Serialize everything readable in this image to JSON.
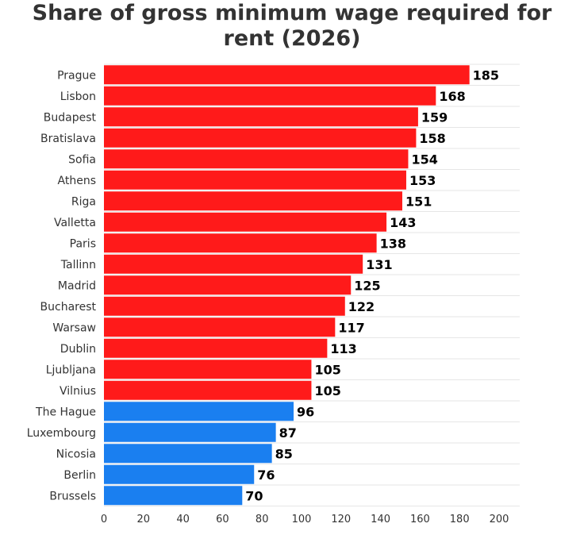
{
  "chart_data": {
    "type": "bar",
    "orientation": "horizontal",
    "title_lines": [
      "Share of gross minimum wage required for",
      "rent (2026)"
    ],
    "xlabel": "",
    "ylabel": "",
    "xlim": [
      0,
      200
    ],
    "x_ticks": [
      0,
      20,
      40,
      60,
      80,
      100,
      120,
      140,
      160,
      180,
      200
    ],
    "grid": true,
    "categories": [
      "Prague",
      "Lisbon",
      "Budapest",
      "Bratislava",
      "Sofia",
      "Athens",
      "Riga",
      "Valletta",
      "Paris",
      "Tallinn",
      "Madrid",
      "Bucharest",
      "Warsaw",
      "Dublin",
      "Ljubljana",
      "Vilnius",
      "The Hague",
      "Luxembourg",
      "Nicosia",
      "Berlin",
      "Brussels"
    ],
    "values": [
      185,
      168,
      159,
      158,
      154,
      153,
      151,
      143,
      138,
      131,
      125,
      122,
      117,
      113,
      105,
      105,
      96,
      87,
      85,
      76,
      70
    ],
    "colors": {
      "above_100": "#ff1a1a",
      "below_100": "#1a7ff0",
      "grid": "#e6e6e6",
      "label": "#333333",
      "value_label": "#000000"
    }
  }
}
